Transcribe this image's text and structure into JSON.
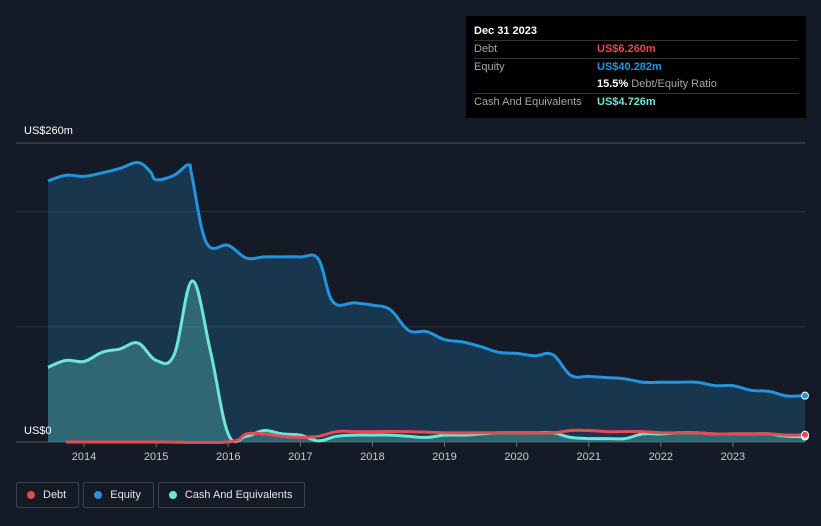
{
  "tooltip": {
    "date": "Dec 31 2023",
    "debt_label": "Debt",
    "debt_value": "US$6.260m",
    "equity_label": "Equity",
    "equity_value": "US$40.282m",
    "ratio_value": "15.5%",
    "ratio_label": "Debt/Equity Ratio",
    "cash_label": "Cash And Equivalents",
    "cash_value": "US$4.726m"
  },
  "legend": {
    "debt": "Debt",
    "equity": "Equity",
    "cash": "Cash And Equivalents"
  },
  "colors": {
    "debt": "#e64a52",
    "equity": "#2394df",
    "cash": "#6ee6d7",
    "background": "#151b26"
  },
  "chart_data": {
    "type": "area",
    "title": "",
    "xlabel": "",
    "ylabel": "",
    "y_top_label": "US$260m",
    "y_bottom_label": "US$0",
    "ylim": [
      0,
      260
    ],
    "xlim": [
      2013.5,
      2024.0
    ],
    "x_ticks": [
      "2014",
      "2015",
      "2016",
      "2017",
      "2018",
      "2019",
      "2020",
      "2021",
      "2022",
      "2023"
    ],
    "series": [
      {
        "name": "Equity",
        "key": "equity",
        "points": [
          [
            2013.5,
            227
          ],
          [
            2013.75,
            232
          ],
          [
            2014.0,
            231
          ],
          [
            2014.25,
            234
          ],
          [
            2014.5,
            238
          ],
          [
            2014.75,
            243
          ],
          [
            2014.92,
            235
          ],
          [
            2015.0,
            228
          ],
          [
            2015.25,
            232
          ],
          [
            2015.45,
            241
          ],
          [
            2015.5,
            230
          ],
          [
            2015.7,
            173
          ],
          [
            2016.0,
            171
          ],
          [
            2016.25,
            160
          ],
          [
            2016.5,
            161
          ],
          [
            2016.75,
            161
          ],
          [
            2017.0,
            161
          ],
          [
            2017.25,
            159
          ],
          [
            2017.45,
            122
          ],
          [
            2017.75,
            121
          ],
          [
            2018.0,
            119
          ],
          [
            2018.25,
            115
          ],
          [
            2018.5,
            97
          ],
          [
            2018.75,
            96
          ],
          [
            2019.0,
            89
          ],
          [
            2019.25,
            87
          ],
          [
            2019.5,
            83
          ],
          [
            2019.75,
            78
          ],
          [
            2020.0,
            77
          ],
          [
            2020.25,
            75
          ],
          [
            2020.5,
            76
          ],
          [
            2020.75,
            58
          ],
          [
            2021.0,
            57
          ],
          [
            2021.25,
            56
          ],
          [
            2021.5,
            55
          ],
          [
            2021.75,
            52
          ],
          [
            2022.0,
            52
          ],
          [
            2022.25,
            52
          ],
          [
            2022.5,
            52
          ],
          [
            2022.75,
            49
          ],
          [
            2023.0,
            49
          ],
          [
            2023.25,
            45
          ],
          [
            2023.5,
            44
          ],
          [
            2023.75,
            40
          ],
          [
            2024.0,
            40.282
          ]
        ]
      },
      {
        "name": "Cash And Equivalents",
        "key": "cash",
        "points": [
          [
            2013.5,
            65
          ],
          [
            2013.75,
            71
          ],
          [
            2014.0,
            70
          ],
          [
            2014.25,
            78
          ],
          [
            2014.5,
            81
          ],
          [
            2014.75,
            86
          ],
          [
            2015.0,
            71
          ],
          [
            2015.25,
            76
          ],
          [
            2015.5,
            140
          ],
          [
            2015.75,
            80
          ],
          [
            2016.0,
            7
          ],
          [
            2016.25,
            5
          ],
          [
            2016.5,
            10
          ],
          [
            2016.75,
            7
          ],
          [
            2017.0,
            6
          ],
          [
            2017.25,
            1
          ],
          [
            2017.5,
            5
          ],
          [
            2017.75,
            6
          ],
          [
            2018.0,
            6
          ],
          [
            2018.25,
            6
          ],
          [
            2018.5,
            5
          ],
          [
            2018.75,
            4
          ],
          [
            2019.0,
            6
          ],
          [
            2019.25,
            6
          ],
          [
            2019.5,
            7
          ],
          [
            2019.75,
            8
          ],
          [
            2020.0,
            8
          ],
          [
            2020.25,
            8
          ],
          [
            2020.5,
            8
          ],
          [
            2020.75,
            4
          ],
          [
            2021.0,
            3
          ],
          [
            2021.25,
            3
          ],
          [
            2021.5,
            3
          ],
          [
            2021.75,
            7
          ],
          [
            2022.0,
            7
          ],
          [
            2022.25,
            8
          ],
          [
            2022.5,
            8
          ],
          [
            2022.75,
            7
          ],
          [
            2023.0,
            7
          ],
          [
            2023.25,
            7
          ],
          [
            2023.5,
            7
          ],
          [
            2023.75,
            5
          ],
          [
            2024.0,
            4.726
          ]
        ]
      },
      {
        "name": "Debt",
        "key": "debt",
        "points": [
          [
            2013.75,
            0
          ],
          [
            2014.0,
            0
          ],
          [
            2015.0,
            0
          ],
          [
            2016.0,
            0
          ],
          [
            2016.25,
            7
          ],
          [
            2016.5,
            7
          ],
          [
            2016.75,
            5
          ],
          [
            2017.0,
            4
          ],
          [
            2017.25,
            5
          ],
          [
            2017.5,
            9
          ],
          [
            2017.75,
            9
          ],
          [
            2018.0,
            9
          ],
          [
            2018.5,
            9
          ],
          [
            2019.0,
            8
          ],
          [
            2019.5,
            8
          ],
          [
            2020.0,
            8
          ],
          [
            2020.5,
            8
          ],
          [
            2020.75,
            10
          ],
          [
            2021.0,
            10
          ],
          [
            2021.25,
            9
          ],
          [
            2021.5,
            9
          ],
          [
            2021.75,
            9
          ],
          [
            2022.0,
            8
          ],
          [
            2022.25,
            8
          ],
          [
            2022.5,
            8
          ],
          [
            2022.75,
            7
          ],
          [
            2023.0,
            7
          ],
          [
            2023.5,
            7
          ],
          [
            2023.75,
            6
          ],
          [
            2024.0,
            6.26
          ]
        ]
      }
    ]
  }
}
